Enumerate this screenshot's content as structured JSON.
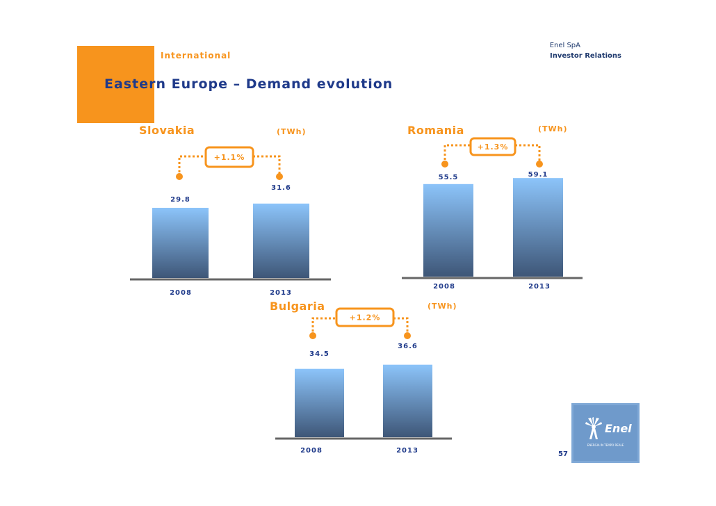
{
  "header": {
    "section": "International",
    "company": "Enel SpA",
    "department": "Investor Relations",
    "title": "Eastern Europe –  Demand evolution"
  },
  "colors": {
    "orange": "#F7941D",
    "navy": "#1F3A8A",
    "bar_top": "#8CC4FA",
    "bar_bottom": "#3E5677",
    "axis": "#666666"
  },
  "chart_data": [
    {
      "type": "bar",
      "title": "Slovakia",
      "unit": "(TWh)",
      "categories": [
        "2008",
        "2013"
      ],
      "values": [
        29.8,
        31.6
      ],
      "value_labels": [
        "29.8",
        "31.6"
      ],
      "growth": "+1.1%"
    },
    {
      "type": "bar",
      "title": "Romania",
      "unit": "(TWh)",
      "categories": [
        "2008",
        "2013"
      ],
      "values": [
        55.5,
        59.1
      ],
      "value_labels": [
        "55.5",
        "59.1"
      ],
      "growth": "+1.3%"
    },
    {
      "type": "bar",
      "title": "Bulgaria",
      "unit": "(TWh)",
      "categories": [
        "2008",
        "2013"
      ],
      "values": [
        34.5,
        36.6
      ],
      "value_labels": [
        "34.5",
        "36.6"
      ],
      "growth": "+1.2%"
    }
  ],
  "footer": {
    "page_number": "57",
    "logo_text": "Enel",
    "logo_caption": "ENERGIA IN TEMPO REALE"
  }
}
